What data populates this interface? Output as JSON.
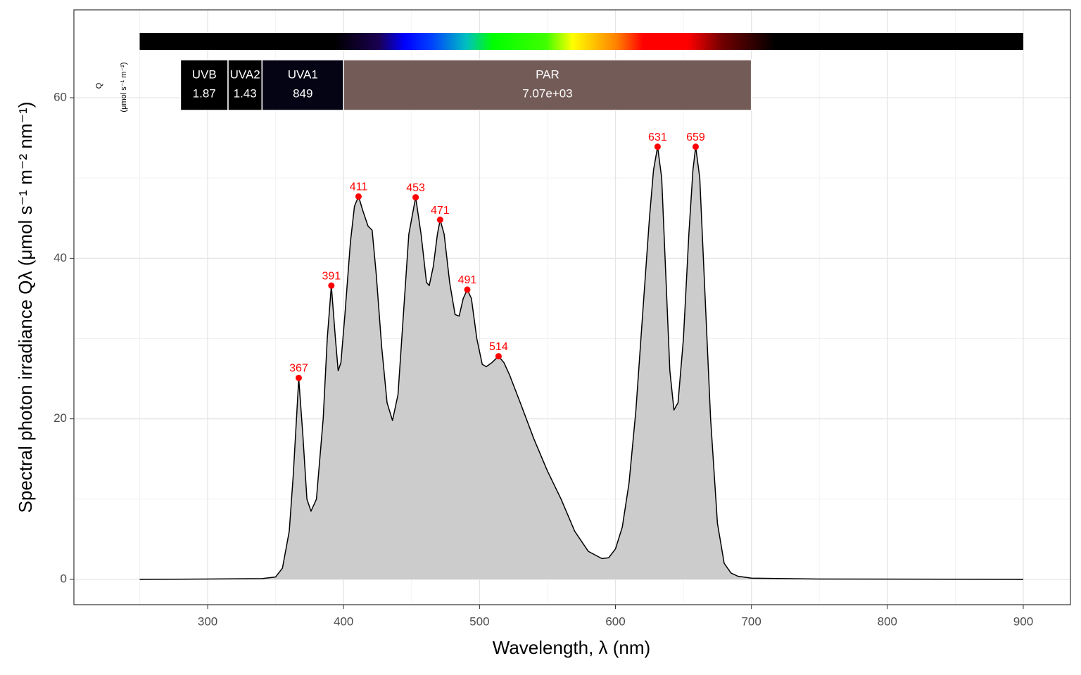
{
  "chart_data": {
    "type": "area",
    "x_title": "Wavelength, λ (nm)",
    "y_title": "Spectral  photon  irradiance  Qλ  (μmol s⁻¹ m⁻² nm⁻¹)",
    "band_quantity_label": "Q",
    "band_unit_label": "(μmol s⁻¹ m⁻²)",
    "x": [
      250,
      300,
      340,
      350,
      355,
      360,
      363,
      367,
      370,
      373,
      376,
      380,
      385,
      388,
      391,
      394,
      396,
      398,
      401,
      405,
      408,
      411,
      414,
      418,
      421,
      424,
      428,
      432,
      436,
      440,
      444,
      448,
      453,
      457,
      461,
      463,
      466,
      469,
      471,
      474,
      478,
      482,
      485,
      488,
      491,
      494,
      498,
      502,
      505,
      509,
      514,
      518,
      522,
      530,
      540,
      550,
      560,
      570,
      580,
      590,
      595,
      600,
      605,
      610,
      615,
      620,
      625,
      628,
      631,
      634,
      637,
      640,
      643,
      646,
      650,
      654,
      657,
      659,
      662,
      666,
      670,
      675,
      680,
      685,
      690,
      700,
      750,
      900
    ],
    "values": [
      0,
      0.05,
      0.1,
      0.3,
      1.4,
      6,
      13,
      25,
      18,
      10,
      8.5,
      10,
      20,
      30,
      36.6,
      30,
      26,
      27,
      33,
      42,
      46.5,
      47.7,
      46,
      44,
      43.5,
      38,
      29,
      22,
      19.8,
      23,
      33,
      43,
      47.6,
      43,
      37,
      36.6,
      39,
      43,
      44.8,
      43,
      37,
      33,
      32.8,
      35,
      36.1,
      35,
      30,
      26.8,
      26.5,
      27,
      27.8,
      27,
      25.5,
      22,
      17.5,
      13.5,
      10,
      6,
      3.5,
      2.6,
      2.7,
      3.8,
      6.5,
      12,
      21,
      33,
      45,
      51,
      53.9,
      50,
      38,
      26,
      21.1,
      22,
      30,
      43,
      51,
      53.9,
      50,
      35,
      20,
      7,
      2,
      0.8,
      0.4,
      0.15,
      0.05,
      0
    ],
    "fill_color": "#cccccc",
    "line_color": "#000000",
    "peaks": {
      "x": [
        367,
        391,
        411,
        453,
        471,
        491,
        514,
        631,
        659
      ],
      "values": [
        25.1,
        36.6,
        47.7,
        47.6,
        44.8,
        36.1,
        27.8,
        53.9,
        53.9
      ],
      "color": "#ff0000"
    },
    "color_bar": {
      "range": [
        250,
        900
      ]
    },
    "bands": [
      {
        "name": "UVB",
        "range": [
          280,
          315
        ],
        "value": 1.87,
        "color": "#000000"
      },
      {
        "name": "UVA2",
        "range": [
          315,
          340
        ],
        "value": 1.43,
        "color": "#000000"
      },
      {
        "name": "UVA1",
        "range": [
          340,
          400
        ],
        "value": 849,
        "color": "#050414"
      },
      {
        "name": "PAR",
        "range": [
          400,
          700
        ],
        "value": 7070,
        "value_label": "7.07e+03",
        "color": "#735b57"
      }
    ],
    "xlim": [
      201.6,
      934.7
    ],
    "ylim": [
      -3.15,
      70.95
    ],
    "xticks": [
      300,
      400,
      500,
      600,
      700,
      800,
      900
    ],
    "yticks": [
      0,
      20,
      40,
      60
    ],
    "xminor": [
      250,
      350,
      450,
      550,
      650,
      750,
      850
    ],
    "yminor": [
      10,
      30,
      50
    ],
    "grid": true
  }
}
